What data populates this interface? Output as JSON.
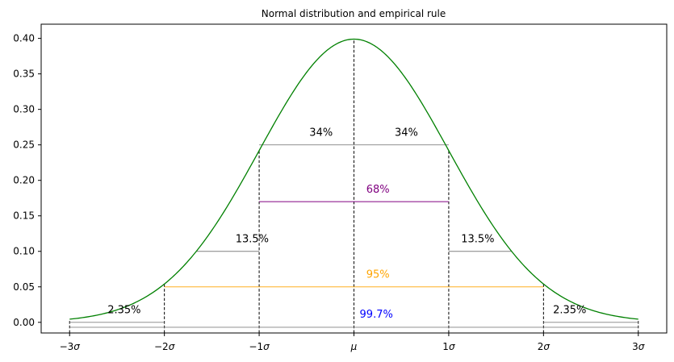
{
  "chart_data": {
    "type": "line",
    "title": "Normal distribution and empirical rule",
    "xlabel": "",
    "ylabel": "",
    "xlim": [
      -3.3,
      3.3
    ],
    "ylim": [
      -0.015,
      0.42
    ],
    "grid": false,
    "colors": {
      "curve": "#008000",
      "bracket_gray": "#808080",
      "pct68": "#800080",
      "pct95": "#FFA500",
      "pct997": "#0000FF",
      "guide": "#000000"
    },
    "x_ticks": [
      {
        "value": -3,
        "coef": "−3",
        "sym": "σ"
      },
      {
        "value": -2,
        "coef": "−2",
        "sym": "σ"
      },
      {
        "value": -1,
        "coef": "−1",
        "sym": "σ"
      },
      {
        "value": 0,
        "coef": "",
        "sym": "μ"
      },
      {
        "value": 1,
        "coef": "1",
        "sym": "σ"
      },
      {
        "value": 2,
        "coef": "2",
        "sym": "σ"
      },
      {
        "value": 3,
        "coef": "3",
        "sym": "σ"
      }
    ],
    "y_ticks": [
      "0.00",
      "0.05",
      "0.10",
      "0.15",
      "0.20",
      "0.25",
      "0.30",
      "0.35",
      "0.40"
    ],
    "series": [
      {
        "function": "standard-normal-pdf",
        "x_range": [
          -3,
          3
        ]
      }
    ],
    "dashed_guides": [
      {
        "x": -3,
        "y_top": 0.0044
      },
      {
        "x": -2,
        "y_top": 0.054
      },
      {
        "x": -1,
        "y_top": 0.242
      },
      {
        "x": 0,
        "y_top": 0.3989
      },
      {
        "x": 1,
        "y_top": 0.242
      },
      {
        "x": 2,
        "y_top": 0.054
      },
      {
        "x": 3,
        "y_top": 0.0044
      }
    ],
    "brackets": [
      {
        "x1": -1,
        "x2": 1,
        "y": 0.25,
        "color": "bracket_gray"
      },
      {
        "x1": -1,
        "x2": 1,
        "y": 0.17,
        "color": "pct68"
      },
      {
        "x1": -1.66,
        "x2": -1,
        "y": 0.1,
        "color": "bracket_gray"
      },
      {
        "x1": 1,
        "x2": 1.66,
        "y": 0.1,
        "color": "bracket_gray"
      },
      {
        "x1": -2,
        "x2": 2,
        "y": 0.05,
        "color": "pct95"
      },
      {
        "x1": -3,
        "x2": -2,
        "y": 0.0,
        "color": "bracket_gray"
      },
      {
        "x1": 2,
        "x2": 3,
        "y": 0.0,
        "color": "bracket_gray"
      },
      {
        "x1": -3,
        "x2": 3,
        "y": -0.007,
        "color": "bracket_gray"
      }
    ],
    "annotations": [
      {
        "text": "34%",
        "x": -0.47,
        "y": 0.257,
        "color": "guide"
      },
      {
        "text": "34%",
        "x": 0.43,
        "y": 0.257,
        "color": "guide"
      },
      {
        "text": "68%",
        "x": 0.13,
        "y": 0.177,
        "color": "pct68"
      },
      {
        "text": "13.5%",
        "x": -1.25,
        "y": 0.107,
        "color": "guide"
      },
      {
        "text": "13.5%",
        "x": 1.13,
        "y": 0.107,
        "color": "guide"
      },
      {
        "text": "95%",
        "x": 0.13,
        "y": 0.057,
        "color": "pct95"
      },
      {
        "text": "2.35%",
        "x": -2.6,
        "y": 0.007,
        "color": "guide"
      },
      {
        "text": "2.35%",
        "x": 2.1,
        "y": 0.007,
        "color": "guide"
      },
      {
        "text": "99.7%",
        "x": 0.06,
        "y": 0.001,
        "color": "pct997"
      }
    ]
  }
}
